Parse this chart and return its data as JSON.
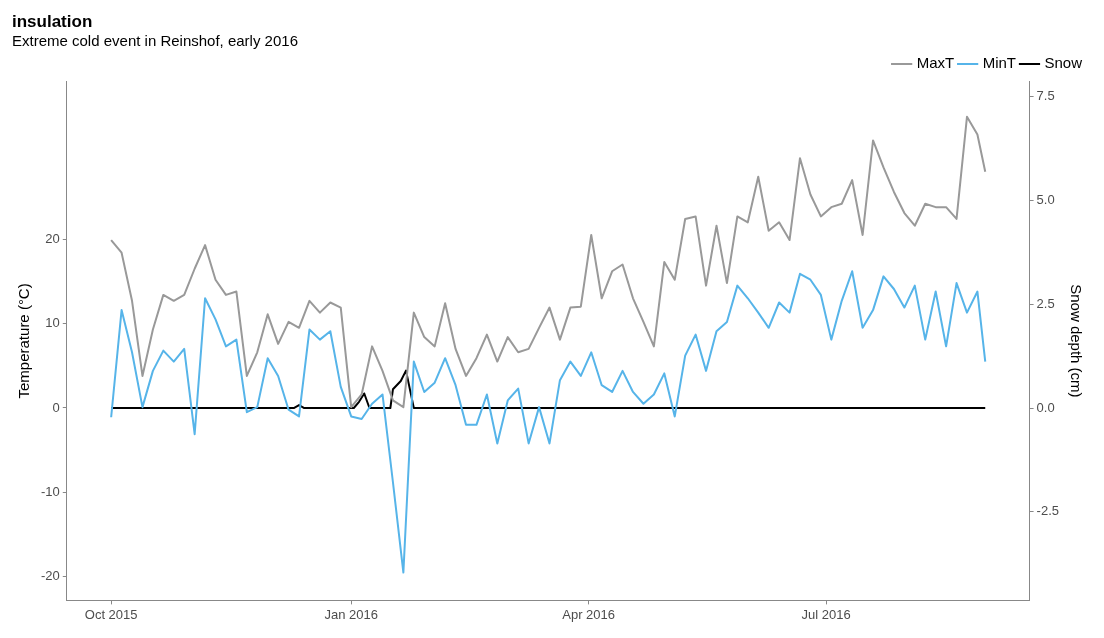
{
  "chart_data": {
    "type": "line",
    "title": "insulation",
    "subtitle": "Extreme cold event in Reinshof, early 2016",
    "ylabel": "Temperature (°C)",
    "y2label": "Snow depth (cm)",
    "x": [
      "2015-10-01",
      "2015-10-05",
      "2015-10-09",
      "2015-10-13",
      "2015-10-17",
      "2015-10-21",
      "2015-10-25",
      "2015-10-29",
      "2015-11-02",
      "2015-11-06",
      "2015-11-10",
      "2015-11-14",
      "2015-11-18",
      "2015-11-22",
      "2015-11-26",
      "2015-11-30",
      "2015-12-04",
      "2015-12-08",
      "2015-12-12",
      "2015-12-16",
      "2015-12-20",
      "2015-12-24",
      "2015-12-28",
      "2016-01-01",
      "2016-01-05",
      "2016-01-09",
      "2016-01-13",
      "2016-01-17",
      "2016-01-21",
      "2016-01-25",
      "2016-01-29",
      "2016-02-02",
      "2016-02-06",
      "2016-02-10",
      "2016-02-14",
      "2016-02-18",
      "2016-02-22",
      "2016-02-26",
      "2016-03-01",
      "2016-03-05",
      "2016-03-09",
      "2016-03-13",
      "2016-03-17",
      "2016-03-21",
      "2016-03-25",
      "2016-03-29",
      "2016-04-02",
      "2016-04-06",
      "2016-04-10",
      "2016-04-14",
      "2016-04-18",
      "2016-04-22",
      "2016-04-26",
      "2016-04-30",
      "2016-05-04",
      "2016-05-08",
      "2016-05-12",
      "2016-05-16",
      "2016-05-20",
      "2016-05-24",
      "2016-05-28",
      "2016-06-01",
      "2016-06-05",
      "2016-06-09",
      "2016-06-13",
      "2016-06-17",
      "2016-06-21",
      "2016-06-25",
      "2016-06-29",
      "2016-07-03",
      "2016-07-07",
      "2016-07-11",
      "2016-07-15",
      "2016-07-19",
      "2016-07-23",
      "2016-07-27",
      "2016-07-31",
      "2016-08-04",
      "2016-08-08",
      "2016-08-12",
      "2016-08-16",
      "2016-08-20",
      "2016-08-24",
      "2016-08-28",
      "2016-08-31"
    ],
    "series": [
      {
        "name": "MaxT",
        "color": "#999999",
        "values": [
          19.9,
          18.4,
          12.7,
          3.8,
          9.3,
          13.4,
          12.7,
          13.4,
          16.5,
          19.3,
          15.2,
          13.4,
          13.8,
          3.8,
          6.6,
          11.1,
          7.6,
          10.2,
          9.5,
          12.7,
          11.3,
          12.5,
          11.9,
          0.1,
          1.6,
          7.3,
          4.4,
          0.9,
          0.1,
          11.3,
          8.4,
          7.3,
          12.4,
          7.0,
          3.8,
          5.9,
          8.7,
          5.5,
          8.4,
          6.6,
          7.0,
          9.5,
          11.9,
          8.1,
          11.9,
          12.0,
          20.5,
          13.0,
          16.2,
          17.0,
          13.0,
          10.2,
          7.3,
          17.3,
          15.2,
          22.4,
          22.7,
          14.5,
          21.6,
          14.8,
          22.7,
          22.0,
          27.4,
          21.0,
          22.0,
          19.9,
          29.6,
          25.3,
          22.7,
          23.8,
          24.2,
          27.0,
          20.5,
          31.7,
          28.5,
          25.6,
          23.1,
          21.6,
          24.2,
          23.8,
          23.8,
          22.4,
          34.5,
          32.4,
          28.0
        ]
      },
      {
        "name": "MinT",
        "color": "#56b4e9",
        "values": [
          -1.1,
          11.6,
          6.6,
          0.1,
          4.4,
          6.8,
          5.5,
          7.0,
          -3.1,
          13.0,
          10.5,
          7.3,
          8.1,
          -0.5,
          0.1,
          5.9,
          3.8,
          -0.2,
          -1.0,
          9.3,
          8.1,
          9.1,
          2.5,
          -1.0,
          -1.3,
          0.5,
          1.6,
          -8.8,
          -19.5,
          5.5,
          1.9,
          3.0,
          5.9,
          2.7,
          -2.0,
          -2.0,
          1.6,
          -4.2,
          0.9,
          2.3,
          -4.2,
          0.1,
          -4.2,
          3.3,
          5.5,
          3.8,
          6.6,
          2.7,
          1.9,
          4.4,
          1.9,
          0.5,
          1.6,
          4.1,
          -1.0,
          6.2,
          8.7,
          4.4,
          9.1,
          10.2,
          14.5,
          13.0,
          11.3,
          9.5,
          12.5,
          11.3,
          15.9,
          15.2,
          13.4,
          8.1,
          12.7,
          16.2,
          9.5,
          11.6,
          15.6,
          14.1,
          11.9,
          14.5,
          8.1,
          13.8,
          7.3,
          14.8,
          11.3,
          13.8,
          5.5
        ]
      },
      {
        "name": "Snow",
        "color": "#000000",
        "axis": "y2",
        "x": [
          "2015-10-01",
          "2015-12-10",
          "2015-12-12",
          "2015-12-14",
          "2016-01-02",
          "2016-01-04",
          "2016-01-06",
          "2016-01-08",
          "2016-01-16",
          "2016-01-17",
          "2016-01-20",
          "2016-01-22",
          "2016-01-25",
          "2016-08-31"
        ],
        "values": [
          0,
          0,
          0.07,
          0,
          0,
          0.15,
          0.35,
          0,
          0,
          0.45,
          0.65,
          0.9,
          0,
          0
        ]
      }
    ],
    "xlim": [
      "2015-09-14",
      "2016-09-17"
    ],
    "xticks": [
      {
        "value": "2015-10-01",
        "label": "Oct 2015"
      },
      {
        "value": "2016-01-01",
        "label": "Jan 2016"
      },
      {
        "value": "2016-04-01",
        "label": "Apr 2016"
      },
      {
        "value": "2016-07-01",
        "label": "Jul 2016"
      }
    ],
    "ylim": [
      -22.8,
      38.7
    ],
    "yticks": [
      -20,
      -10,
      0,
      10,
      20
    ],
    "y2lim": [
      -4.63,
      7.86
    ],
    "y2ticks": [
      -2.5,
      {
        "value": 0,
        "label": "0.0"
      },
      2.5,
      {
        "value": 5,
        "label": "5.0"
      },
      7.5
    ],
    "grid": false,
    "legend": "top right",
    "marker": "none",
    "line_style": "solid"
  }
}
